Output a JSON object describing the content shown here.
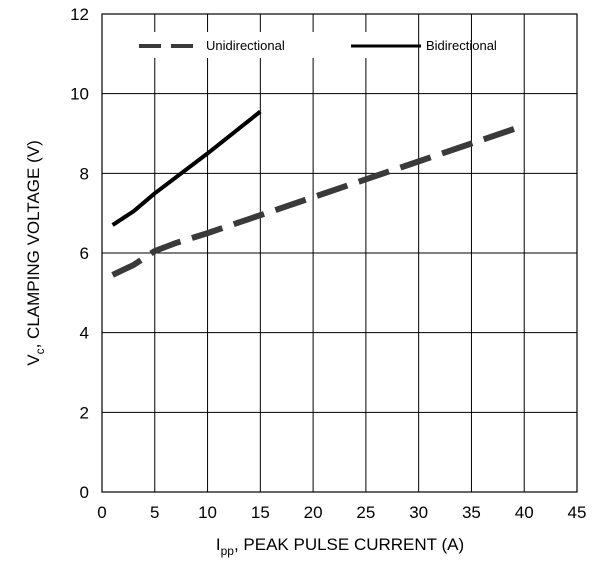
{
  "chart_data": {
    "type": "line",
    "xlabel_main": "I",
    "xlabel_sub": "pp",
    "xlabel_rest": ", PEAK PULSE CURRENT (A)",
    "ylabel_main": "V",
    "ylabel_sub": "c",
    "ylabel_rest": ", CLAMPING VOLTAGE (V)",
    "xlim": [
      0,
      45
    ],
    "ylim": [
      0,
      12
    ],
    "x_ticks": [
      "0",
      "5",
      "10",
      "15",
      "20",
      "25",
      "30",
      "35",
      "40",
      "45"
    ],
    "y_ticks": [
      "0",
      "2",
      "4",
      "6",
      "8",
      "10",
      "12"
    ],
    "grid": true,
    "legend_position": "top",
    "series": [
      {
        "name": "Unidirectional",
        "style": "dashed",
        "color": "#3a3a3a",
        "points": [
          [
            1,
            5.45
          ],
          [
            3,
            5.7
          ],
          [
            5,
            6.05
          ],
          [
            7,
            6.25
          ],
          [
            10,
            6.5
          ],
          [
            15,
            6.95
          ],
          [
            20,
            7.4
          ],
          [
            25,
            7.85
          ],
          [
            30,
            8.3
          ],
          [
            35,
            8.75
          ],
          [
            40,
            9.2
          ]
        ]
      },
      {
        "name": "Bidirectional",
        "style": "solid",
        "color": "#000000",
        "points": [
          [
            1,
            6.7
          ],
          [
            3,
            7.05
          ],
          [
            5,
            7.5
          ],
          [
            10,
            8.5
          ],
          [
            15,
            9.55
          ]
        ]
      }
    ]
  }
}
